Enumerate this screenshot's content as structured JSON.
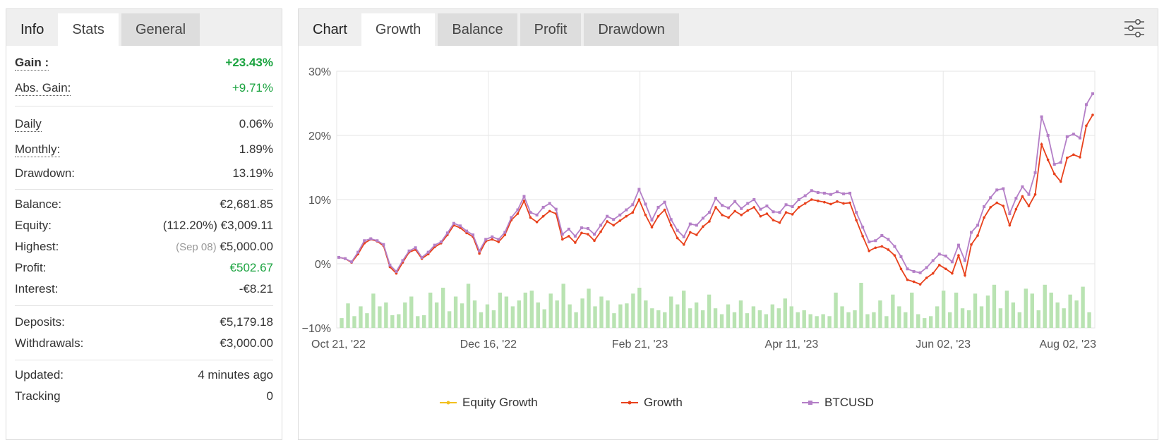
{
  "info_panel": {
    "tabs": [
      {
        "label": "Info"
      },
      {
        "label": "Stats"
      },
      {
        "label": "General"
      }
    ],
    "gain": {
      "label": "Gain :",
      "value": "+23.43%"
    },
    "abs_gain": {
      "label": "Abs. Gain:",
      "value": "+9.71%"
    },
    "daily": {
      "label": "Daily",
      "value": "0.06%"
    },
    "monthly": {
      "label": "Monthly:",
      "value": "1.89%"
    },
    "drawdown": {
      "label": "Drawdown:",
      "value": "13.19%"
    },
    "balance": {
      "label": "Balance:",
      "value": "€2,681.85"
    },
    "equity": {
      "label": "Equity:",
      "pct": "(112.20%)",
      "value": "€3,009.11"
    },
    "highest": {
      "label": "Highest:",
      "date": "(Sep 08)",
      "value": "€5,000.00"
    },
    "profit": {
      "label": "Profit:",
      "value": "€502.67"
    },
    "interest": {
      "label": "Interest:",
      "value": "-€8.21"
    },
    "deposits": {
      "label": "Deposits:",
      "value": "€5,179.18"
    },
    "withdrawals": {
      "label": "Withdrawals:",
      "value": "€3,000.00"
    },
    "updated": {
      "label": "Updated:",
      "value": "4 minutes ago"
    },
    "tracking": {
      "label": "Tracking",
      "value": "0"
    }
  },
  "chart_panel": {
    "tabs": [
      {
        "label": "Chart"
      },
      {
        "label": "Growth"
      },
      {
        "label": "Balance"
      },
      {
        "label": "Profit"
      },
      {
        "label": "Drawdown"
      }
    ],
    "settings_icon": "sliders-icon",
    "colors": {
      "growth": "#e8411c",
      "btcusd": "#b47fc7",
      "equity_growth": "#f2c01e",
      "volume": "#b9e3b2",
      "grid": "#e6e6e6"
    }
  },
  "chart_data": {
    "type": "line",
    "ylim": [
      -10,
      30
    ],
    "yticks": [
      "30%",
      "20%",
      "10%",
      "0%",
      "−10%"
    ],
    "ytick_values": [
      30,
      20,
      10,
      0,
      -10
    ],
    "xticks": [
      "Oct 21, '22",
      "Dec 16, '22",
      "Feb 21, '23",
      "Apr 11, '23",
      "Jun 02, '23",
      "Aug 02, '23"
    ],
    "grid": true,
    "legend_position": "bottom",
    "series": [
      {
        "name": "Equity Growth",
        "values": []
      },
      {
        "name": "Growth",
        "values": [
          1,
          0.8,
          0.2,
          1.5,
          3.2,
          3.8,
          3.5,
          2.8,
          -0.5,
          -1.5,
          0.2,
          1.8,
          2.2,
          0.8,
          1.5,
          2.6,
          3.2,
          4.5,
          6.0,
          5.6,
          4.8,
          4.2,
          1.6,
          3.5,
          3.8,
          3.4,
          4.5,
          6.8,
          7.8,
          9.8,
          7.2,
          6.5,
          7.4,
          8.2,
          7.8,
          3.8,
          4.3,
          3.3,
          4.8,
          4.6,
          3.6,
          5.0,
          6.6,
          6.0,
          6.7,
          7.4,
          8.0,
          10.0,
          7.6,
          5.7,
          7.4,
          8.4,
          6.0,
          4.0,
          3.0,
          4.9,
          4.5,
          5.8,
          6.6,
          8.8,
          7.6,
          7.2,
          8.2,
          7.6,
          8.3,
          8.8,
          7.4,
          7.8,
          6.8,
          6.4,
          8.0,
          7.7,
          8.8,
          9.4,
          10.0,
          9.8,
          9.6,
          9.3,
          9.7,
          9.4,
          9.5,
          6.8,
          4.3,
          2.0,
          2.5,
          2.7,
          2.2,
          1.3,
          -0.8,
          -2.5,
          -2.8,
          -3.2,
          -2.2,
          -1.5,
          -0.2,
          -0.8,
          -1.5,
          1.3,
          -1.8,
          3.0,
          4.4,
          7.2,
          8.8,
          9.5,
          9.0,
          6.0,
          8.5,
          10.5,
          9.0,
          10.8,
          18.6,
          16.2,
          14.0,
          12.8,
          16.5,
          17.0,
          16.6,
          21.5,
          23.2
        ]
      },
      {
        "name": "BTCUSD",
        "values": [
          1,
          0.8,
          0.3,
          1.8,
          3.6,
          3.9,
          3.6,
          3.0,
          -0.2,
          -1.2,
          0.5,
          2.0,
          2.5,
          1.0,
          1.8,
          2.9,
          3.4,
          4.8,
          6.3,
          5.9,
          5.1,
          4.5,
          2.0,
          3.8,
          4.2,
          3.8,
          4.9,
          7.2,
          8.4,
          10.5,
          8.0,
          7.6,
          8.8,
          9.4,
          8.5,
          4.6,
          5.4,
          4.3,
          5.6,
          5.5,
          4.6,
          6.0,
          7.4,
          6.9,
          7.6,
          8.4,
          9.2,
          11.6,
          9.3,
          6.8,
          8.8,
          9.6,
          6.9,
          5.2,
          4.2,
          6.2,
          6.0,
          7.1,
          8.0,
          10.2,
          9.1,
          8.7,
          9.7,
          8.6,
          9.4,
          10.0,
          8.5,
          9.0,
          8.1,
          8.0,
          9.2,
          8.9,
          10.0,
          10.6,
          11.4,
          11.1,
          11.0,
          10.8,
          11.2,
          10.9,
          11.0,
          8.0,
          5.7,
          3.4,
          3.6,
          4.4,
          3.8,
          2.7,
          1.1,
          -0.8,
          -1.2,
          -1.4,
          -0.6,
          0.5,
          1.5,
          1.2,
          0.3,
          2.9,
          0.5,
          4.9,
          6.0,
          8.9,
          10.3,
          11.5,
          11.7,
          7.8,
          10.2,
          12.0,
          10.8,
          14.2,
          22.9,
          20.0,
          15.5,
          15.8,
          19.8,
          20.2,
          19.6,
          24.8,
          26.5
        ]
      },
      {
        "name": "volume",
        "values": [
          1,
          2.5,
          1.2,
          2.2,
          1.5,
          3.5,
          2.2,
          2.6,
          1.3,
          1.4,
          2.6,
          3.2,
          1.2,
          1.3,
          3.6,
          2.6,
          4.1,
          1.7,
          3.2,
          2.5,
          4.5,
          2.8,
          1.6,
          2.4,
          1.8,
          3.6,
          3.2,
          2.2,
          2.8,
          3.6,
          3.8,
          2.6,
          1.9,
          3.5,
          2.8,
          4.5,
          2.4,
          1.6,
          3.0,
          4.0,
          2.2,
          3.2,
          2.8,
          1.5,
          2.4,
          2.5,
          3.5,
          4.1,
          2.8,
          2.0,
          1.8,
          1.6,
          3.2,
          2.4,
          3.8,
          2.0,
          2.6,
          1.8,
          3.4,
          2.0,
          1.4,
          2.4,
          1.6,
          2.8,
          1.5,
          2.2,
          1.8,
          1.4,
          2.4,
          2.0,
          3.0,
          2.2,
          1.6,
          1.8,
          1.4,
          1.2,
          1.4,
          1.2,
          3.6,
          2.2,
          1.6,
          1.8,
          4.6,
          1.4,
          1.6,
          2.8,
          1.2,
          3.4,
          2.2,
          1.6,
          3.6,
          1.4,
          1.0,
          1.2,
          2.2,
          3.8,
          1.6,
          3.6,
          2.0,
          1.8,
          3.5,
          2.2,
          3.3,
          4.4,
          2.0,
          3.8,
          2.6,
          1.6,
          4.0,
          3.5,
          1.8,
          4.4,
          3.6,
          2.6,
          2.0,
          3.4,
          2.8,
          4.2,
          1.6
        ]
      }
    ]
  }
}
